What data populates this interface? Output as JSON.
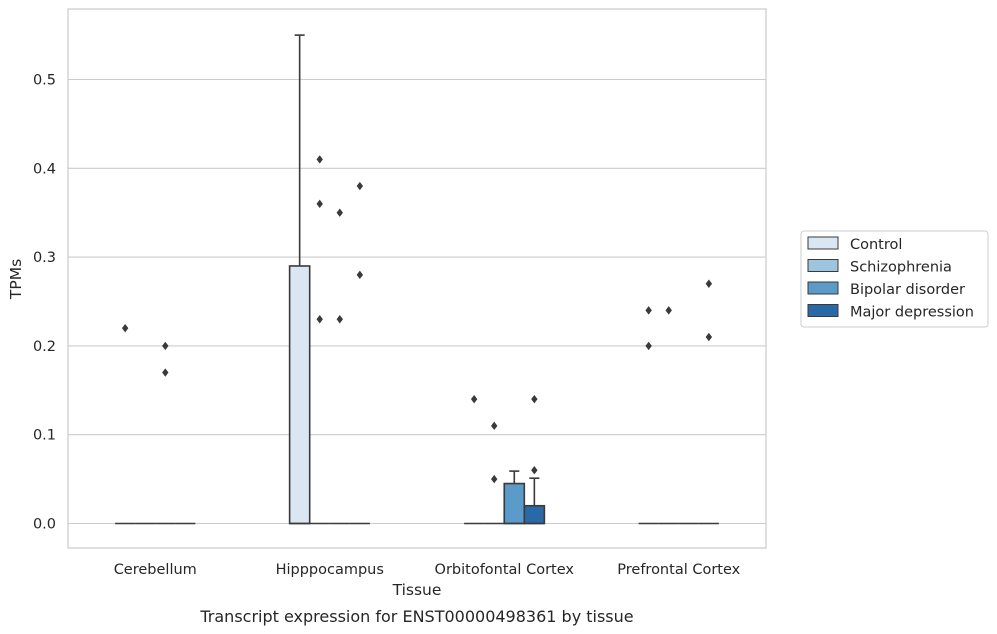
{
  "chart_data": {
    "type": "box",
    "title": "",
    "caption": "Transcript expression for ENST00000498361 by tissue",
    "xlabel": "Tissue",
    "ylabel": "TPMs",
    "ylim": [
      -0.027,
      0.58
    ],
    "yticks": [
      0.0,
      0.1,
      0.2,
      0.3,
      0.4,
      0.5
    ],
    "ytick_labels": [
      "0.0",
      "0.1",
      "0.2",
      "0.3",
      "0.4",
      "0.5"
    ],
    "grid": "horizontal",
    "legend_position": "right-outside",
    "categories": [
      "Cerebellum",
      "Hipppocampus",
      "Orbitofontal Cortex",
      "Prefrontal Cortex"
    ],
    "series": [
      {
        "name": "Control",
        "color": "#dae6f2",
        "boxes": [
          {
            "q1": 0.0,
            "median": 0.0,
            "q3": 0.0,
            "whisker_low": 0.0,
            "whisker_high": 0.0,
            "fliers": [
              0.22
            ]
          },
          {
            "q1": 0.0,
            "median": 0.0,
            "q3": 0.29,
            "whisker_low": 0.0,
            "whisker_high": 0.55,
            "fliers": []
          },
          {
            "q1": 0.0,
            "median": 0.0,
            "q3": 0.0,
            "whisker_low": 0.0,
            "whisker_high": 0.0,
            "fliers": [
              0.14
            ]
          },
          {
            "q1": 0.0,
            "median": 0.0,
            "q3": 0.0,
            "whisker_low": 0.0,
            "whisker_high": 0.0,
            "fliers": [
              0.24,
              0.2
            ]
          }
        ]
      },
      {
        "name": "Schizophrenia",
        "color": "#9ec5df",
        "boxes": [
          {
            "q1": 0.0,
            "median": 0.0,
            "q3": 0.0,
            "whisker_low": 0.0,
            "whisker_high": 0.0,
            "fliers": []
          },
          {
            "q1": 0.0,
            "median": 0.0,
            "q3": 0.0,
            "whisker_low": 0.0,
            "whisker_high": 0.0,
            "fliers": [
              0.41,
              0.36,
              0.23
            ]
          },
          {
            "q1": 0.0,
            "median": 0.0,
            "q3": 0.0,
            "whisker_low": 0.0,
            "whisker_high": 0.0,
            "fliers": [
              0.11,
              0.05
            ]
          },
          {
            "q1": 0.0,
            "median": 0.0,
            "q3": 0.0,
            "whisker_low": 0.0,
            "whisker_high": 0.0,
            "fliers": [
              0.24
            ]
          }
        ]
      },
      {
        "name": "Bipolar disorder",
        "color": "#5a9bc9",
        "boxes": [
          {
            "q1": 0.0,
            "median": 0.0,
            "q3": 0.0,
            "whisker_low": 0.0,
            "whisker_high": 0.0,
            "fliers": [
              0.2,
              0.17
            ]
          },
          {
            "q1": 0.0,
            "median": 0.0,
            "q3": 0.0,
            "whisker_low": 0.0,
            "whisker_high": 0.0,
            "fliers": [
              0.35,
              0.23
            ]
          },
          {
            "q1": 0.0,
            "median": 0.0,
            "q3": 0.045,
            "whisker_low": 0.0,
            "whisker_high": 0.059,
            "fliers": []
          },
          {
            "q1": 0.0,
            "median": 0.0,
            "q3": 0.0,
            "whisker_low": 0.0,
            "whisker_high": 0.0,
            "fliers": []
          }
        ]
      },
      {
        "name": "Major depression",
        "color": "#2a69a7",
        "boxes": [
          {
            "q1": 0.0,
            "median": 0.0,
            "q3": 0.0,
            "whisker_low": 0.0,
            "whisker_high": 0.0,
            "fliers": []
          },
          {
            "q1": 0.0,
            "median": 0.0,
            "q3": 0.0,
            "whisker_low": 0.0,
            "whisker_high": 0.0,
            "fliers": [
              0.38,
              0.28
            ]
          },
          {
            "q1": 0.0,
            "median": 0.0,
            "q3": 0.02,
            "whisker_low": 0.0,
            "whisker_high": 0.051,
            "fliers": [
              0.14,
              0.06
            ]
          },
          {
            "q1": 0.0,
            "median": 0.0,
            "q3": 0.0,
            "whisker_low": 0.0,
            "whisker_high": 0.0,
            "fliers": [
              0.27,
              0.21
            ]
          }
        ]
      }
    ]
  }
}
